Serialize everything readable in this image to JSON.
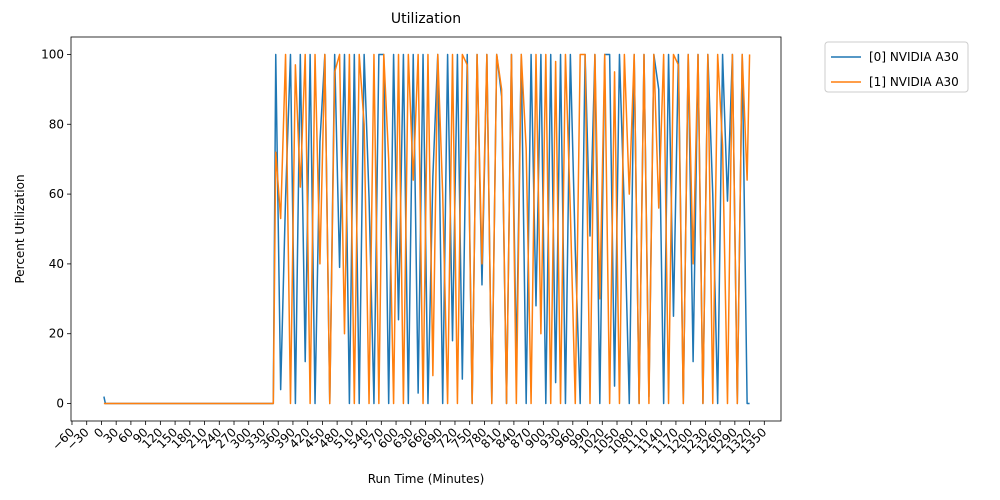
{
  "chart_data": {
    "type": "line",
    "title": "Utilization",
    "x_label": "Run Time (Minutes)",
    "y_label": "Percent Utilization",
    "x": [
      5,
      8,
      350,
      355,
      365,
      375,
      385,
      395,
      405,
      415,
      425,
      435,
      445,
      455,
      465,
      475,
      485,
      495,
      505,
      515,
      525,
      535,
      545,
      555,
      565,
      575,
      585,
      595,
      605,
      615,
      625,
      635,
      645,
      655,
      665,
      675,
      685,
      695,
      705,
      715,
      725,
      735,
      745,
      755,
      765,
      775,
      785,
      795,
      805,
      815,
      825,
      835,
      845,
      855,
      865,
      875,
      885,
      895,
      905,
      915,
      925,
      935,
      945,
      955,
      965,
      975,
      985,
      995,
      1005,
      1015,
      1025,
      1035,
      1045,
      1055,
      1065,
      1075,
      1085,
      1095,
      1105,
      1115,
      1125,
      1135,
      1145,
      1155,
      1165,
      1175,
      1185,
      1195,
      1205,
      1215,
      1225,
      1235,
      1245,
      1255,
      1265,
      1275,
      1285,
      1295,
      1305,
      1315,
      1320
    ],
    "series": [
      {
        "name": "[0] NVIDIA A30",
        "color": "#1f77b4",
        "values": [
          2,
          0,
          0,
          100,
          4,
          59,
          100,
          0,
          100,
          12,
          100,
          0,
          75,
          100,
          0,
          100,
          39,
          100,
          0,
          100,
          0,
          100,
          59,
          0,
          100,
          100,
          0,
          100,
          24,
          100,
          0,
          100,
          3,
          100,
          0,
          65,
          100,
          0,
          100,
          18,
          100,
          7,
          100,
          0,
          100,
          34,
          100,
          0,
          100,
          88,
          0,
          100,
          12,
          100,
          0,
          100,
          28,
          100,
          0,
          100,
          6,
          100,
          0,
          100,
          44,
          0,
          100,
          48,
          100,
          0,
          100,
          100,
          5,
          100,
          55,
          0,
          100,
          0,
          100,
          2,
          100,
          90,
          0,
          100,
          25,
          100,
          0,
          100,
          12,
          100,
          0,
          100,
          60,
          0,
          100,
          58,
          100,
          0,
          100,
          0,
          0
        ]
      },
      {
        "name": "[1] NVIDIA A30",
        "color": "#ff7f0e",
        "values": [
          0,
          0,
          0,
          72,
          53,
          100,
          0,
          97,
          62,
          100,
          0,
          100,
          40,
          100,
          0,
          95,
          100,
          20,
          100,
          0,
          100,
          80,
          0,
          100,
          0,
          100,
          70,
          0,
          100,
          0,
          100,
          64,
          100,
          0,
          100,
          8,
          100,
          60,
          0,
          100,
          0,
          100,
          97,
          0,
          100,
          40,
          100,
          0,
          100,
          90,
          0,
          100,
          0,
          100,
          73,
          0,
          100,
          20,
          100,
          0,
          98,
          0,
          100,
          55,
          0,
          100,
          100,
          0,
          100,
          30,
          100,
          0,
          95,
          0,
          100,
          60,
          100,
          0,
          100,
          0,
          100,
          56,
          100,
          0,
          100,
          97,
          0,
          100,
          40,
          100,
          0,
          100,
          0,
          100,
          74,
          0,
          100,
          0,
          100,
          64,
          100
        ]
      }
    ],
    "xlim": [
      -62,
      1384
    ],
    "ylim": [
      -5,
      105
    ],
    "xticks": [
      {
        "value": -60,
        "label": "−60"
      },
      {
        "value": -30,
        "label": "−30"
      },
      0,
      30,
      60,
      90,
      120,
      150,
      180,
      210,
      240,
      270,
      300,
      330,
      360,
      390,
      420,
      450,
      480,
      510,
      540,
      570,
      600,
      630,
      660,
      690,
      720,
      750,
      780,
      810,
      840,
      870,
      900,
      930,
      960,
      990,
      1020,
      1050,
      1080,
      1110,
      1140,
      1170,
      1200,
      1230,
      1260,
      1290,
      1320,
      1350
    ],
    "yticks": [
      0,
      20,
      40,
      60,
      80,
      100
    ]
  }
}
